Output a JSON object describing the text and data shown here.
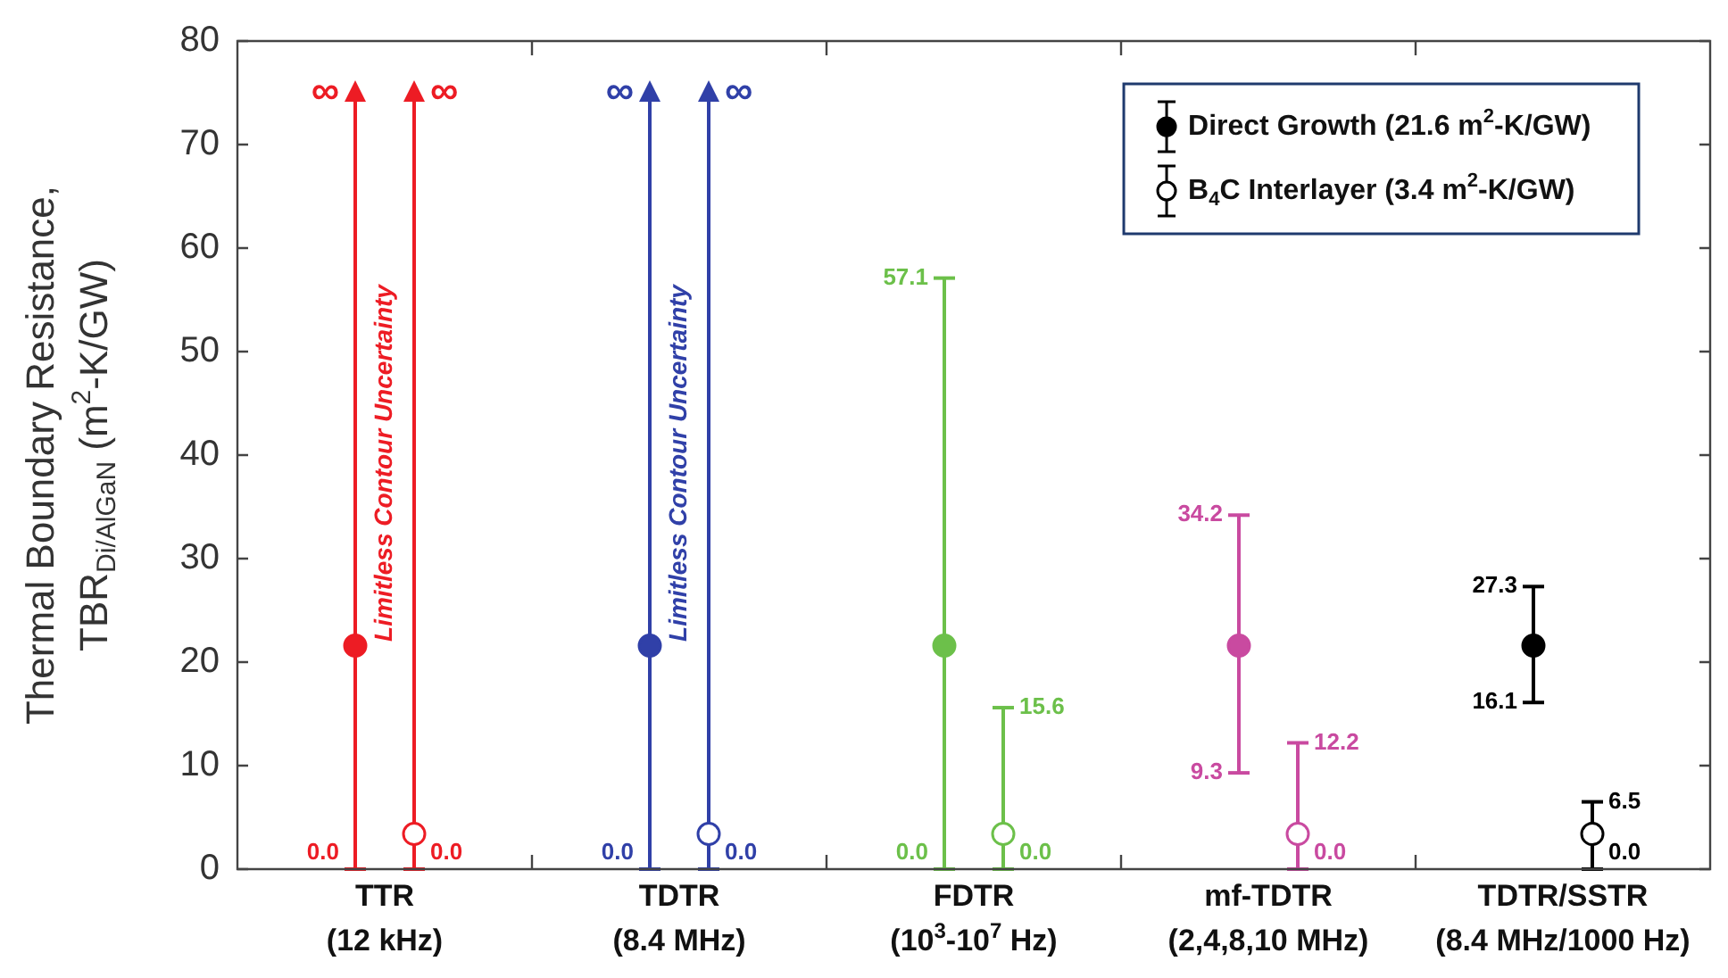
{
  "chart_data": {
    "type": "scatter",
    "ylabel": "Thermal Boundary Resistance,\nTBR$_{Di/AlGaN}$ (m$^{2}$-K/GW)",
    "categories": [
      "TTR\n(12 kHz)",
      "TDTR\n(8.4 MHz)",
      "FDTR\n(10$^{3}$-10$^{7}$ Hz)",
      "mf-TDTR\n(2,4,8,10 MHz)",
      "TDTR/SSTR\n(8.4 MHz/1000 Hz)"
    ],
    "series": [
      {
        "name": "Direct Growth (21.6 m$^{2}$-K/GW)",
        "color": "#000000",
        "colors": [
          "#ed1c24",
          "#3040a8",
          "#6cc04a",
          "#c94aa0",
          "#000000"
        ],
        "values": [
          21.6,
          21.6,
          21.6,
          21.6,
          21.6
        ],
        "errors": [
          [
            0,
            75
          ],
          [
            0,
            75
          ],
          [
            0,
            57.1
          ],
          [
            9.3,
            34.2
          ],
          [
            16.1,
            27.3
          ]
        ]
      },
      {
        "name": "B$_{4}$C Interlayer (3.4 m$^{2}$-K/GW)",
        "color": "#000000",
        "colors": [
          "#ed1c24",
          "#3040a8",
          "#6cc04a",
          "#c94aa0",
          "#000000"
        ],
        "values": [
          3.4,
          3.4,
          3.4,
          3.4,
          3.4
        ],
        "errors": [
          [
            0,
            75
          ],
          [
            0,
            75
          ],
          [
            0,
            15.6
          ],
          [
            0,
            12.2
          ],
          [
            0,
            6.5
          ]
        ]
      }
    ],
    "ylim": [
      0,
      80
    ],
    "yticks": [
      0,
      10,
      20,
      30,
      40,
      50,
      60,
      70,
      80
    ],
    "grid": false,
    "legend": "top right",
    "marker": "circle",
    "annotations": [
      "∞",
      "0.0",
      "∞",
      "0.0",
      "∞",
      "0.0",
      "∞",
      "0.0",
      "57.1",
      "0.0",
      "15.6",
      "0.0",
      "34.2",
      "9.3",
      "12.2",
      "0.0",
      "27.3",
      "16.1",
      "6.5",
      "0.0",
      "Limitless Contour Uncertainty",
      "Limitless Contour Uncertainty"
    ]
  }
}
